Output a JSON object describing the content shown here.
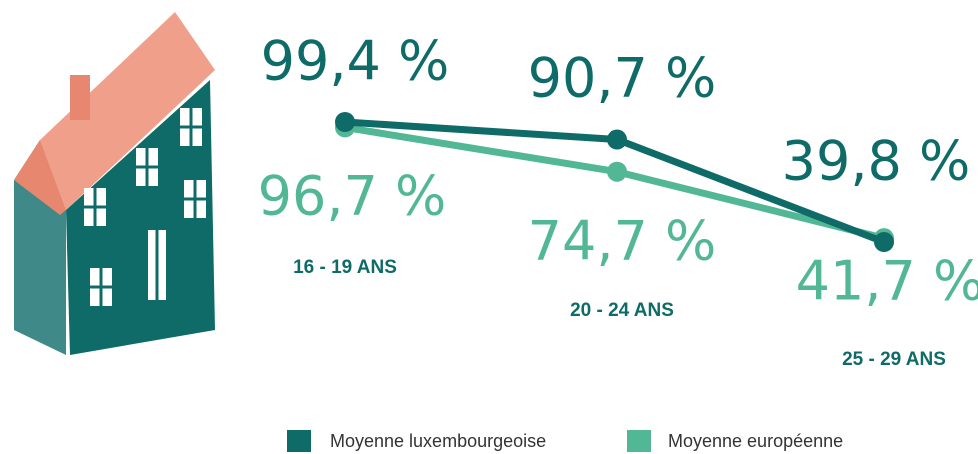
{
  "chart_data": {
    "type": "line",
    "categories": [
      "16 - 19 ANS",
      "20 - 24 ANS",
      "25 - 29 ANS"
    ],
    "series": [
      {
        "name": "Moyenne luxembourgeoise",
        "color": "#0e6b68",
        "values": [
          99.4,
          90.7,
          39.8
        ],
        "value_labels": [
          "99,4 %",
          "90,7 %",
          "39,8 %"
        ]
      },
      {
        "name": "Moyenne européenne",
        "color": "#52b795",
        "values": [
          96.7,
          74.7,
          41.7
        ],
        "value_labels": [
          "96,7 %",
          "74,7 %",
          "41,7 %"
        ]
      }
    ]
  }
}
